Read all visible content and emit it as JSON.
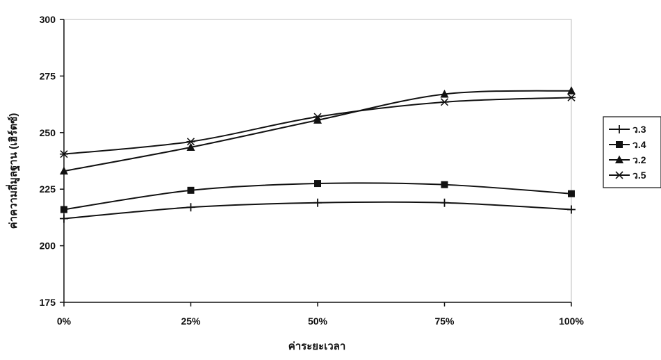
{
  "chart_data": {
    "type": "line",
    "categories": [
      "0%",
      "25%",
      "50%",
      "75%",
      "100%"
    ],
    "xlabel": "ค่าระยะเวลา",
    "ylabel": "ค่าความถี่มูลฐาน (เฮิร์ตซ์)",
    "ylim": [
      175,
      300
    ],
    "yticks": [
      175,
      200,
      225,
      250,
      275,
      300
    ],
    "grid": false,
    "legend_position": "right",
    "series": [
      {
        "name": "ว.3",
        "marker": "plus",
        "values": [
          212,
          217,
          219,
          219,
          216
        ]
      },
      {
        "name": "ว.4",
        "marker": "square",
        "values": [
          216,
          224.5,
          227.5,
          227,
          223
        ]
      },
      {
        "name": "ว.2",
        "marker": "triangle",
        "values": [
          233,
          243.5,
          255.5,
          267,
          268.5
        ]
      },
      {
        "name": "ว.5",
        "marker": "star",
        "values": [
          240.5,
          246,
          257,
          263.5,
          265.5
        ]
      }
    ],
    "colors": {
      "line": "#111111",
      "plot_background": "#ffffff",
      "frame": "#111111"
    }
  }
}
